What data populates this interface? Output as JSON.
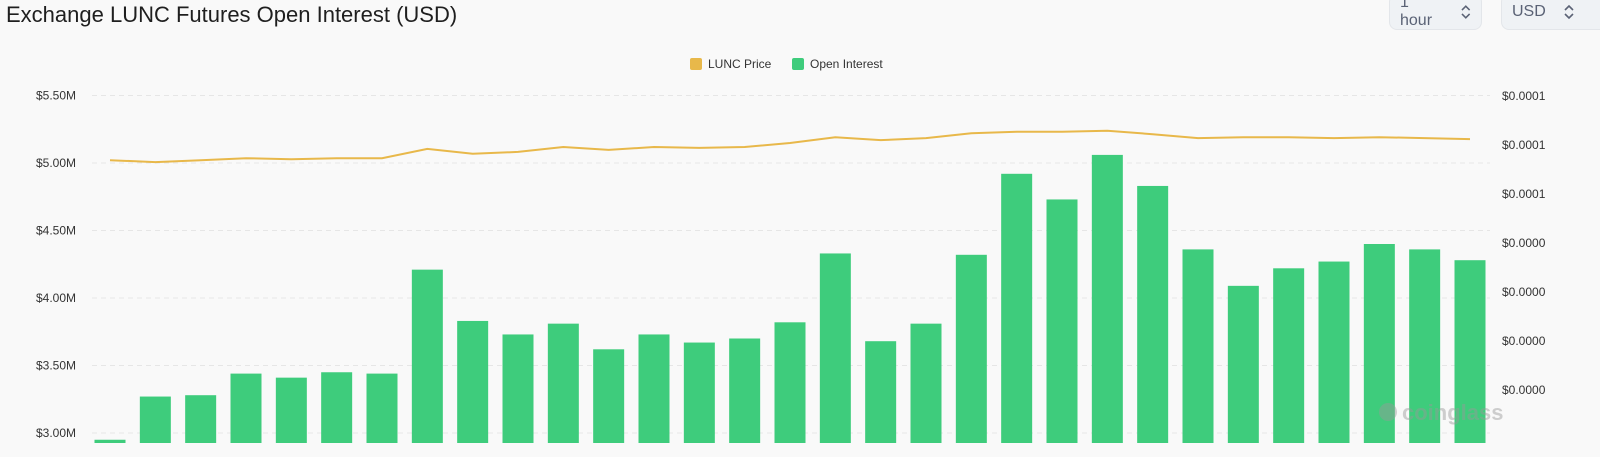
{
  "header": {
    "title": "Exchange LUNC Futures Open Interest (USD)",
    "interval_select": "1 hour",
    "currency_select": "USD"
  },
  "watermark": "coinglass",
  "colors": {
    "open_interest": "#3ecc7c",
    "price": "#e8b84a",
    "background": "#f9f9f9"
  },
  "chart_data": {
    "type": "bar",
    "title": "Exchange LUNC Futures Open Interest (USD)",
    "legend": {
      "position": "top",
      "entries": [
        "LUNC Price",
        "Open Interest"
      ]
    },
    "grid": true,
    "y_left": {
      "ticks": [
        "$3.00M",
        "$3.50M",
        "$4.00M",
        "$4.50M",
        "$5.00M",
        "$5.50M"
      ],
      "tick_values": [
        3.0,
        3.5,
        4.0,
        4.5,
        5.0,
        5.5
      ],
      "unit": "M USD",
      "range": [
        2.93,
        5.5
      ]
    },
    "y_right": {
      "ticks": [
        "$0.0000",
        "$0.0000",
        "$0.0000",
        "$0.0000",
        "$0.0001",
        "$0.0001",
        "$0.0001"
      ],
      "tick_values": [
        1e-05,
        2e-05,
        3e-05,
        4e-05,
        5e-05,
        6e-05,
        7e-05
      ],
      "range": [
        1e-05,
        7e-05
      ]
    },
    "series": [
      {
        "name": "Open Interest",
        "type": "bar",
        "axis": "left",
        "values": [
          2.95,
          3.27,
          3.28,
          3.44,
          3.41,
          3.45,
          3.44,
          4.21,
          3.83,
          3.73,
          3.81,
          3.62,
          3.73,
          3.67,
          3.7,
          3.82,
          4.33,
          3.68,
          3.81,
          4.32,
          4.92,
          4.73,
          5.06,
          4.83,
          4.36,
          4.09,
          4.22,
          4.27,
          4.4,
          4.36,
          4.28
        ]
      },
      {
        "name": "LUNC Price",
        "type": "line",
        "axis": "right",
        "values": [
          5.69e-05,
          5.65e-05,
          5.69e-05,
          5.73e-05,
          5.71e-05,
          5.73e-05,
          5.73e-05,
          5.92e-05,
          5.82e-05,
          5.86e-05,
          5.96e-05,
          5.9e-05,
          5.96e-05,
          5.94e-05,
          5.96e-05,
          6.04e-05,
          6.16e-05,
          6.1e-05,
          6.14e-05,
          6.24e-05,
          6.27e-05,
          6.27e-05,
          6.29e-05,
          6.22e-05,
          6.14e-05,
          6.16e-05,
          6.16e-05,
          6.14e-05,
          6.16e-05,
          6.14e-05,
          6.12e-05
        ]
      }
    ]
  }
}
